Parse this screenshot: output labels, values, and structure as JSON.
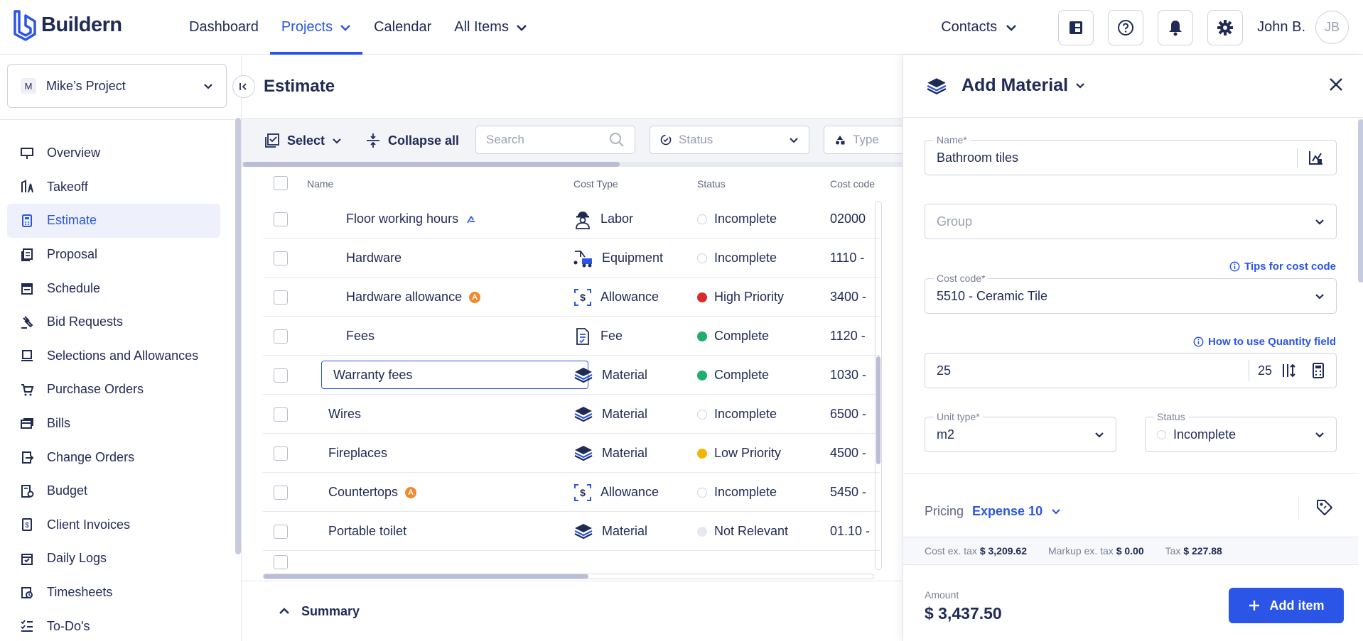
{
  "app": {
    "name": "Buildern"
  },
  "nav": [
    {
      "label": "Dashboard",
      "dropdown": false,
      "active": false
    },
    {
      "label": "Projects",
      "dropdown": true,
      "active": true
    },
    {
      "label": "Calendar",
      "dropdown": false,
      "active": false
    },
    {
      "label": "All Items",
      "dropdown": true,
      "active": false
    }
  ],
  "topright": {
    "contacts": "Contacts",
    "user_name": "John B.",
    "avatar_initials": "JB"
  },
  "project": {
    "badge": "M",
    "name": "Mike’s Project"
  },
  "sidebar": {
    "items": [
      {
        "label": "Overview",
        "icon": "presentation-board-icon"
      },
      {
        "label": "Takeoff",
        "icon": "takeoff-icon"
      },
      {
        "label": "Estimate",
        "icon": "calculator-icon",
        "active": true
      },
      {
        "label": "Proposal",
        "icon": "proposal-document-icon"
      },
      {
        "label": "Schedule",
        "icon": "schedule-calendar-icon"
      },
      {
        "label": "Bid Requests",
        "icon": "gavel-icon"
      },
      {
        "label": "Selections and Allowances",
        "icon": "selections-icon"
      },
      {
        "label": "Purchase Orders",
        "icon": "cart-icon"
      },
      {
        "label": "Bills",
        "icon": "bills-icon"
      },
      {
        "label": "Change Orders",
        "icon": "change-orders-icon"
      },
      {
        "label": "Budget",
        "icon": "budget-icon"
      },
      {
        "label": "Client Invoices",
        "icon": "invoice-icon"
      },
      {
        "label": "Daily Logs",
        "icon": "daily-log-icon"
      },
      {
        "label": "Timesheets",
        "icon": "timesheet-icon"
      },
      {
        "label": "To-Do's",
        "icon": "todo-list-icon"
      }
    ]
  },
  "main": {
    "title": "Estimate",
    "toolbar": {
      "select": "Select",
      "collapse_all": "Collapse all",
      "search_placeholder": "Search",
      "status_placeholder": "Status",
      "type_placeholder": "Type"
    },
    "columns": {
      "name": "Name",
      "cost_type": "Cost Type",
      "status": "Status",
      "cost_code": "Cost code"
    },
    "rows": [
      {
        "name": "Floor working hours",
        "indent": true,
        "badge": "takeoff",
        "cost_type": "Labor",
        "type_icon": "labor-worker-icon",
        "status": "Incomplete",
        "status_color": "#ffffff",
        "cost_code": "02000"
      },
      {
        "name": "Hardware",
        "indent": true,
        "badge": "",
        "cost_type": "Equipment",
        "type_icon": "equipment-icon",
        "status": "Incomplete",
        "status_color": "#ffffff",
        "cost_code": "1110 -"
      },
      {
        "name": "Hardware allowance",
        "indent": true,
        "badge": "A",
        "cost_type": "Allowance",
        "type_icon": "allowance-icon",
        "status": "High Priority",
        "status_color": "#d92d2d",
        "cost_code": "3400 -"
      },
      {
        "name": "Fees",
        "indent": true,
        "badge": "",
        "cost_type": "Fee",
        "type_icon": "fee-document-icon",
        "status": "Complete",
        "status_color": "#1fae6b",
        "cost_code": "1120 -"
      },
      {
        "name": "Warranty fees",
        "indent": false,
        "editing": true,
        "badge": "",
        "cost_type": "Material",
        "type_icon": "material-layers-icon",
        "status": "Complete",
        "status_color": "#1fae6b",
        "cost_code": "1030 -"
      },
      {
        "name": "Wires",
        "indent": false,
        "badge": "",
        "cost_type": "Material",
        "type_icon": "material-layers-icon",
        "status": "Incomplete",
        "status_color": "#ffffff",
        "cost_code": "6500 -"
      },
      {
        "name": "Fireplaces",
        "indent": false,
        "badge": "",
        "cost_type": "Material",
        "type_icon": "material-layers-icon",
        "status": "Low Priority",
        "status_color": "#f2b705",
        "cost_code": "4500 -"
      },
      {
        "name": "Countertops",
        "indent": false,
        "badge": "A",
        "cost_type": "Allowance",
        "type_icon": "allowance-icon",
        "status": "Incomplete",
        "status_color": "#ffffff",
        "cost_code": "5450 -"
      },
      {
        "name": "Portable toilet",
        "indent": false,
        "badge": "",
        "cost_type": "Material",
        "type_icon": "material-layers-icon",
        "status": "Not Relevant",
        "status_color": "#e6e8ef",
        "cost_code": "01.10 -"
      }
    ],
    "summary": "Summary"
  },
  "panel": {
    "title": "Add Material",
    "name_label": "Name*",
    "name_value": "Bathroom tiles",
    "group_placeholder": "Group",
    "cost_code_tip": "Tips for cost code",
    "cost_code_label": "Cost code*",
    "cost_code_value": "5510 - Ceramic Tile",
    "quantity_tip": "How to use Quantity field",
    "quantity_value": "25",
    "quantity_secondary": "25",
    "unit_type_label": "Unit type*",
    "unit_type_value": "m2",
    "status_label": "Status",
    "status_value": "Incomplete",
    "pricing_label": "Pricing",
    "pricing_value": "Expense 10",
    "cost_ex_tax_label": "Cost ex. tax",
    "cost_ex_tax": "$ 3,209.62",
    "markup_label": "Markup ex. tax",
    "markup": "$ 0.00",
    "tax_label": "Tax",
    "tax": "$ 227.88",
    "amount_label": "Amount",
    "amount": "$ 3,437.50",
    "add_button": "Add item"
  },
  "colors": {
    "accent": "#2b55e6",
    "navy": "#1f2a55",
    "allowance_badge": "#f2892b"
  }
}
